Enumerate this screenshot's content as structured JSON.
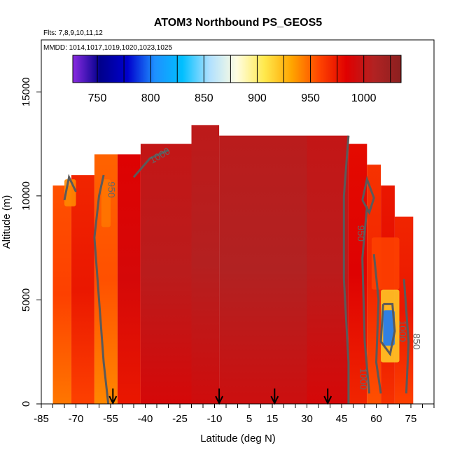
{
  "chart_data": {
    "type": "heatmap",
    "title": "ATOM3 Northbound PS_GEOS5",
    "subtitle_flights": "Flts: 7,8,9,10,11,12",
    "subtitle_dates": "MMDD: 1014,1017,1019,1020,1023,1025",
    "xlabel": "Latitude (deg N)",
    "ylabel": "Altitude (m)",
    "xlim": [
      -85,
      85
    ],
    "ylim": [
      0,
      17500
    ],
    "x_ticks": [
      -85,
      -70,
      -55,
      -40,
      -25,
      -10,
      5,
      15,
      30,
      45,
      60,
      75
    ],
    "y_ticks": [
      0,
      5000,
      10000,
      15000
    ],
    "colorbar": {
      "range": [
        727,
        1035
      ],
      "ticks": [
        750,
        800,
        850,
        900,
        950,
        1000
      ],
      "colors": [
        "#8a2be2",
        "#00008b",
        "#0000cd",
        "#1e90ff",
        "#00bfff",
        "#b0e0ff",
        "#fffde0",
        "#ffe94d",
        "#ffa500",
        "#ff4500",
        "#e00000",
        "#b22222",
        "#8b2020"
      ]
    },
    "contour_labels": [
      "950",
      "1000",
      "950",
      "1000",
      "1000",
      "850"
    ],
    "arrow_latitudes": [
      -54,
      -8,
      16,
      39
    ],
    "field": [
      {
        "x": [
          -80,
          -72
        ],
        "ymax": 10500,
        "value": 960
      },
      {
        "x": [
          -72,
          -62
        ],
        "ymax": 11000,
        "value": 975
      },
      {
        "x": [
          -62,
          -52
        ],
        "ymax": 12000,
        "value": 955
      },
      {
        "x": [
          -52,
          -42
        ],
        "ymax": 12000,
        "value": 990
      },
      {
        "x": [
          -42,
          -20
        ],
        "ymax": 12500,
        "value": 1005
      },
      {
        "x": [
          -20,
          -8
        ],
        "ymax": 13400,
        "value": 1008
      },
      {
        "x": [
          -8,
          30
        ],
        "ymax": 12900,
        "value": 1010
      },
      {
        "x": [
          30,
          48
        ],
        "ymax": 12900,
        "value": 1005
      },
      {
        "x": [
          48,
          56
        ],
        "ymax": 12500,
        "value": 985
      },
      {
        "x": [
          56,
          62
        ],
        "ymax": 11500,
        "value": 970
      },
      {
        "x": [
          62,
          68
        ],
        "ymax": 10500,
        "value": 980
      },
      {
        "x": [
          68,
          76
        ],
        "ymax": 9000,
        "value": 975
      }
    ],
    "features": [
      {
        "x": [
          -59,
          -55
        ],
        "y": [
          8500,
          10800
        ],
        "value": 945
      },
      {
        "x": [
          -75,
          -70
        ],
        "y": [
          9500,
          10800
        ],
        "value": 940
      },
      {
        "x": [
          62,
          70
        ],
        "y": [
          2000,
          5500
        ],
        "value": 920
      },
      {
        "x": [
          63,
          68
        ],
        "y": [
          2800,
          4500
        ],
        "value": 800
      },
      {
        "x": [
          58,
          70
        ],
        "y": [
          5500,
          8000
        ],
        "value": 960
      }
    ]
  }
}
